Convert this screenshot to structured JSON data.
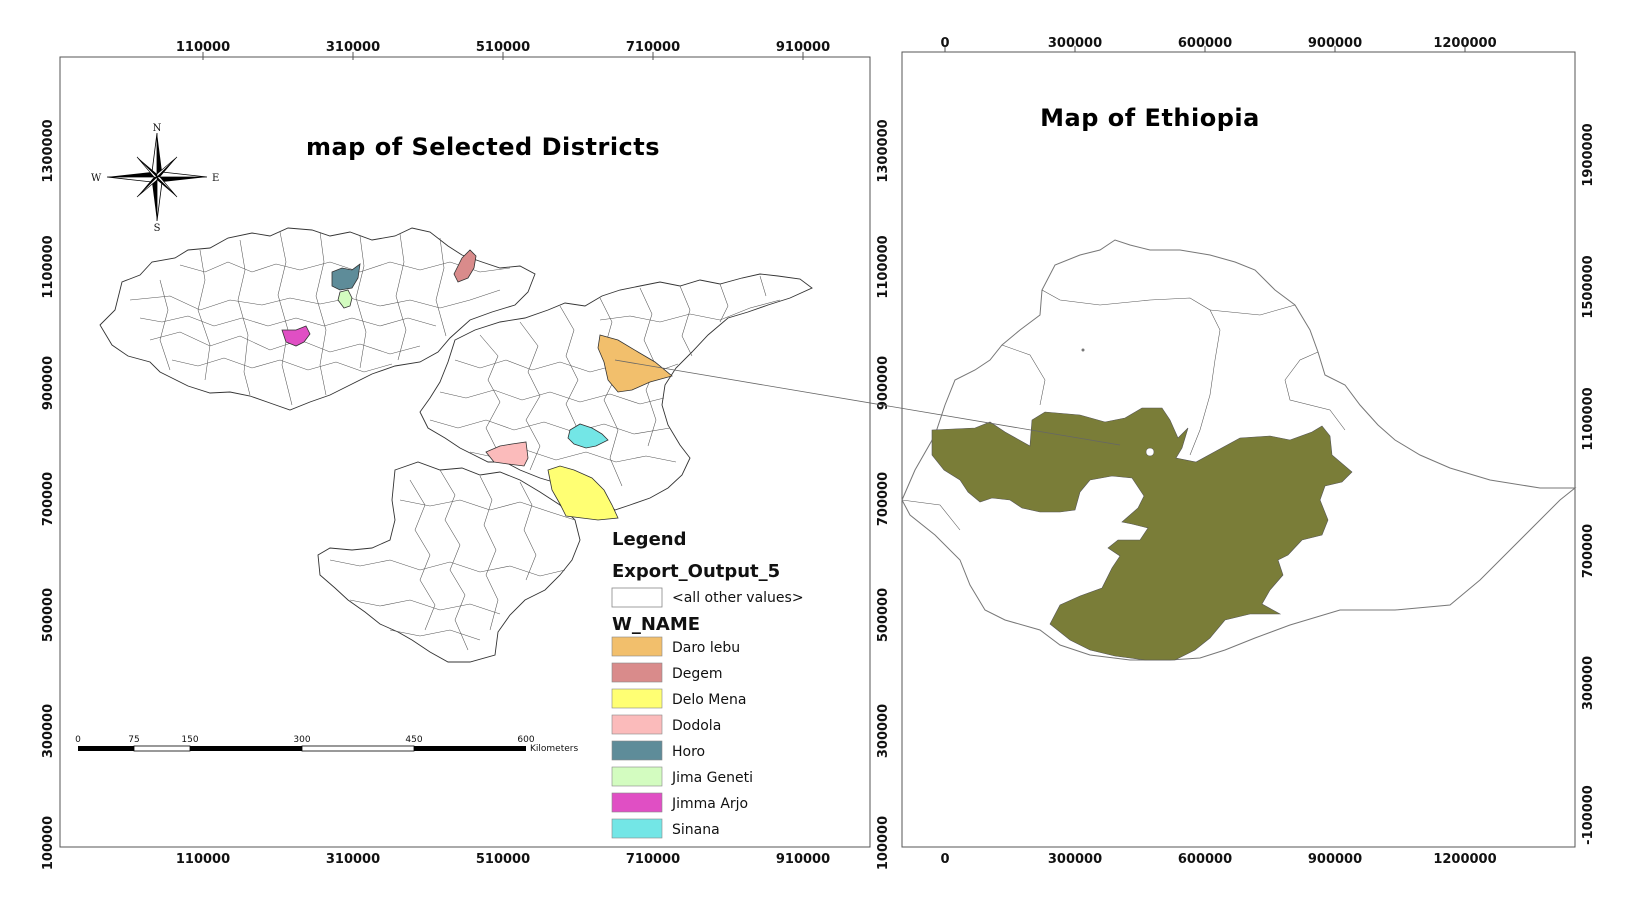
{
  "left_map": {
    "title": "map of Selected Districts",
    "x_ticks": [
      "110000",
      "310000",
      "510000",
      "710000",
      "910000"
    ],
    "y_ticks_left": [
      "1300000",
      "1100000",
      "900000",
      "700000",
      "500000",
      "300000",
      "100000"
    ],
    "y_ticks_right": [
      "1300000",
      "1100000",
      "900000",
      "700000",
      "500000",
      "300000",
      "100000"
    ],
    "north_arrow": {
      "n": "N",
      "s": "S",
      "e": "E",
      "w": "W"
    },
    "scale_bar": {
      "labels": [
        "0",
        "75",
        "150",
        "300",
        "450",
        "600"
      ],
      "unit": "Kilometers"
    }
  },
  "legend": {
    "heading": "Legend",
    "layer": "Export_Output_5",
    "other_label": "<all other values>",
    "field": "W_NAME",
    "items": [
      {
        "label": "Daro lebu",
        "color": "#f2bf6c"
      },
      {
        "label": "Degem",
        "color": "#d98b8b"
      },
      {
        "label": "Delo Mena",
        "color": "#ffff73"
      },
      {
        "label": "Dodola",
        "color": "#fbbbbb"
      },
      {
        "label": "Horo",
        "color": "#5e8c99"
      },
      {
        "label": "Jima Geneti",
        "color": "#d3fcc0"
      },
      {
        "label": "Jimma Arjo",
        "color": "#e04fc4"
      },
      {
        "label": "Sinana",
        "color": "#73e6e6"
      }
    ]
  },
  "right_map": {
    "title": "Map of Ethiopia",
    "x_ticks": [
      "0",
      "300000",
      "600000",
      "900000",
      "1200000"
    ],
    "y_ticks": [
      "1900000",
      "1500000",
      "1100000",
      "700000",
      "300000",
      "-100000"
    ],
    "highlight_color": "#7a7d38"
  }
}
